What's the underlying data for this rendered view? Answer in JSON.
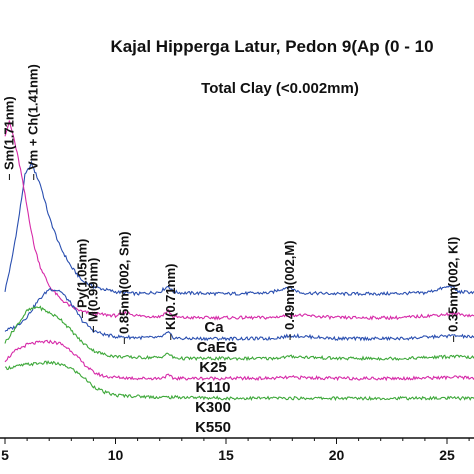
{
  "chart_data": {
    "type": "line",
    "title": "Kajal Hipperga Latur, Pedon 9(Ap (0 - 10",
    "subtitle": "Total Clay (<0.002mm)",
    "xlabel": "",
    "ylabel": "",
    "xlim": [
      5,
      27
    ],
    "x_ticks": [
      5,
      10,
      15,
      20,
      25
    ],
    "grid": false,
    "annotations": [
      {
        "text": "Sm(1.71nm)",
        "x": 5.2
      },
      {
        "text": "Vm + Ch(1.41nm)",
        "x": 6.3
      },
      {
        "text": "Py(1.05nm)",
        "x": 8.5
      },
      {
        "text": "M(0.99nm)",
        "x": 9.0
      },
      {
        "text": "0.85nm(002, Sm)",
        "x": 10.4
      },
      {
        "text": "Kl(0.71nm)",
        "x": 12.5
      },
      {
        "text": "0.49nm(002,M)",
        "x": 17.9
      },
      {
        "text": "0.35nm(002, Kl)",
        "x": 25.3
      }
    ],
    "series": [
      {
        "name": "Ca",
        "color": "#2a4fb0",
        "x": [
          5,
          5.3,
          5.6,
          5.9,
          6.2,
          6.6,
          7.0,
          7.5,
          8.0,
          8.5,
          9,
          10,
          11,
          12,
          12.4,
          12.6,
          13,
          15,
          17,
          17.8,
          18.4,
          20,
          22,
          24,
          25.2,
          25.5,
          27
        ],
        "y": [
          148,
          178,
          218,
          264,
          276,
          255,
          222,
          192,
          172,
          158,
          152,
          147,
          145,
          147,
          153,
          147,
          146,
          145,
          146,
          152,
          146,
          145,
          145,
          146,
          153,
          147,
          146
        ]
      },
      {
        "name": "CaEG",
        "color": "#d62aa8",
        "x": [
          5,
          5.2,
          5.4,
          5.7,
          6.0,
          6.3,
          6.6,
          7.0,
          7.5,
          8,
          8.5,
          9,
          10,
          10.5,
          11,
          12,
          12.4,
          12.6,
          13,
          15,
          17,
          18,
          20,
          23,
          25.3,
          27
        ],
        "y": [
          305,
          318,
          302,
          270,
          232,
          195,
          172,
          153,
          140,
          132,
          127,
          125,
          123,
          126,
          123,
          122,
          128,
          122,
          121,
          121,
          121,
          124,
          121,
          121,
          125,
          121
        ]
      },
      {
        "name": "K25",
        "color": "#2a4fb0",
        "x": [
          5,
          5.5,
          6.0,
          6.5,
          7.0,
          7.5,
          8.0,
          8.5,
          9.0,
          9.5,
          10,
          11,
          12,
          12.4,
          12.6,
          13,
          15,
          17,
          18,
          20,
          23,
          25.3,
          27
        ],
        "y": [
          108,
          112,
          122,
          138,
          150,
          148,
          135,
          118,
          108,
          104,
          102,
          101,
          101,
          106,
          101,
          100,
          100,
          100,
          103,
          100,
          100,
          103,
          100
        ]
      },
      {
        "name": "K110",
        "color": "#3ea83a",
        "x": [
          5,
          5.5,
          6.0,
          6.5,
          7.0,
          7.5,
          8.0,
          8.5,
          9.0,
          9.5,
          10,
          11,
          12,
          12.4,
          12.6,
          13,
          15,
          17,
          18,
          20,
          23,
          25.3,
          27
        ],
        "y": [
          96,
          112,
          128,
          132,
          126,
          120,
          108,
          96,
          88,
          84,
          82,
          81,
          81,
          85,
          81,
          80,
          80,
          80,
          82,
          80,
          80,
          82,
          80
        ]
      },
      {
        "name": "K300",
        "color": "#d62aa8",
        "x": [
          5,
          5.5,
          6.0,
          6.5,
          7.0,
          7.5,
          8.0,
          8.5,
          9.0,
          9.5,
          10,
          11,
          12,
          12.4,
          12.6,
          13,
          15,
          17,
          18,
          20,
          23,
          25.3,
          27
        ],
        "y": [
          78,
          88,
          94,
          96,
          97,
          95,
          88,
          76,
          66,
          62,
          61,
          60,
          60,
          63,
          60,
          60,
          60,
          60,
          61,
          60,
          60,
          61,
          60
        ]
      },
      {
        "name": "K550",
        "color": "#3ea83a",
        "x": [
          5,
          5.5,
          6.0,
          6.5,
          7.0,
          7.5,
          8.0,
          8.5,
          9.0,
          9.5,
          10,
          11,
          12,
          13,
          15,
          17,
          20,
          23,
          25,
          27
        ],
        "y": [
          70,
          72,
          74,
          75,
          76,
          74,
          70,
          62,
          52,
          46,
          43,
          42,
          41,
          41,
          40,
          40,
          40,
          40,
          40,
          40
        ]
      }
    ]
  }
}
